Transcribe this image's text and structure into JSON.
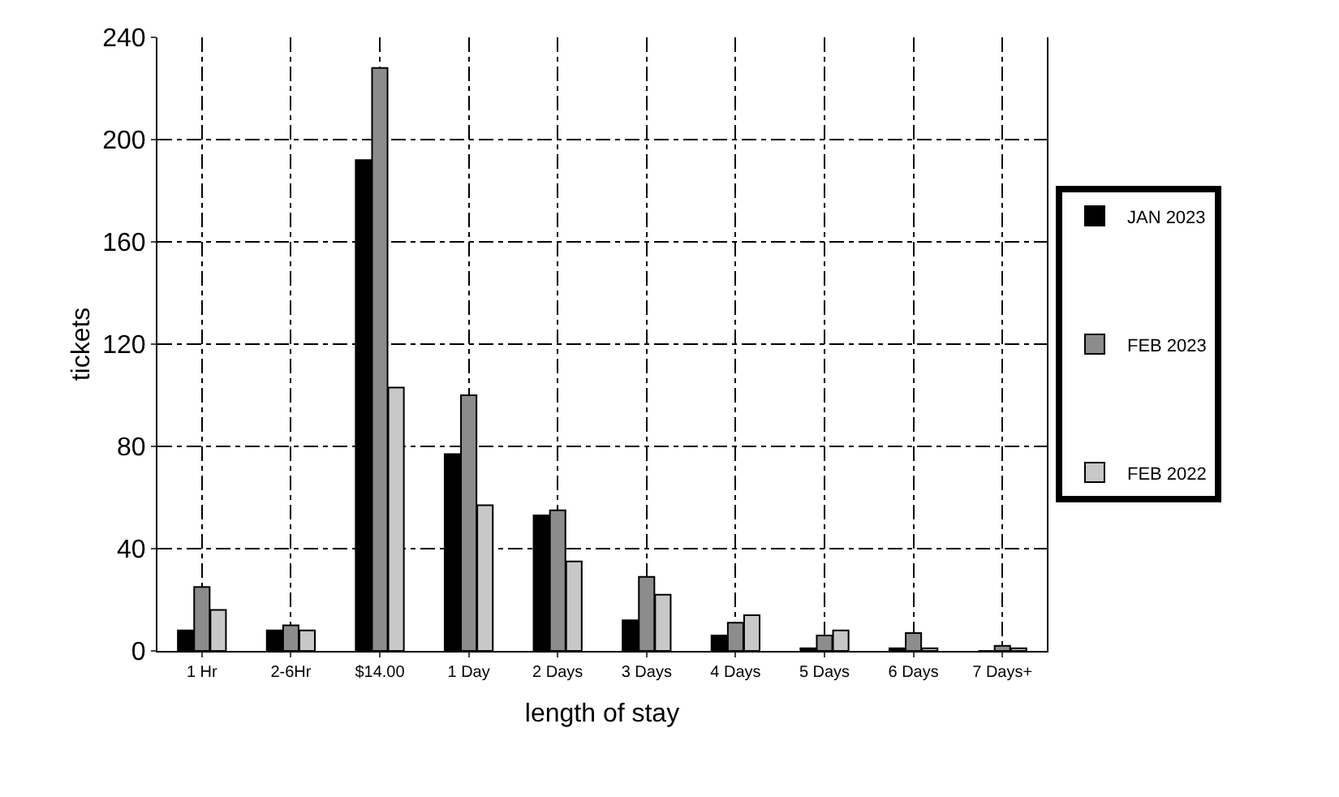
{
  "chart_data": {
    "type": "bar",
    "xlabel": "length of stay",
    "ylabel": "tickets",
    "categories": [
      "1 Hr",
      "2-6Hr",
      "$14.00",
      "1 Day",
      "2 Days",
      "3 Days",
      "4 Days",
      "5 Days",
      "6 Days",
      "7 Days+"
    ],
    "series": [
      {
        "name": "JAN 2023",
        "color": "#000000",
        "values": [
          8,
          8,
          192,
          77,
          53,
          12,
          6,
          1,
          1,
          0
        ]
      },
      {
        "name": "FEB 2023",
        "color": "#8c8c8c",
        "values": [
          25,
          10,
          228,
          100,
          55,
          29,
          11,
          6,
          7,
          2
        ]
      },
      {
        "name": "FEB 2022",
        "color": "#c8c8c8",
        "values": [
          16,
          8,
          103,
          57,
          35,
          22,
          14,
          8,
          1,
          1
        ]
      }
    ],
    "ylim": [
      0,
      240
    ],
    "yticks": [
      0,
      40,
      80,
      120,
      160,
      200,
      240
    ],
    "grid": true,
    "legend": "right"
  }
}
